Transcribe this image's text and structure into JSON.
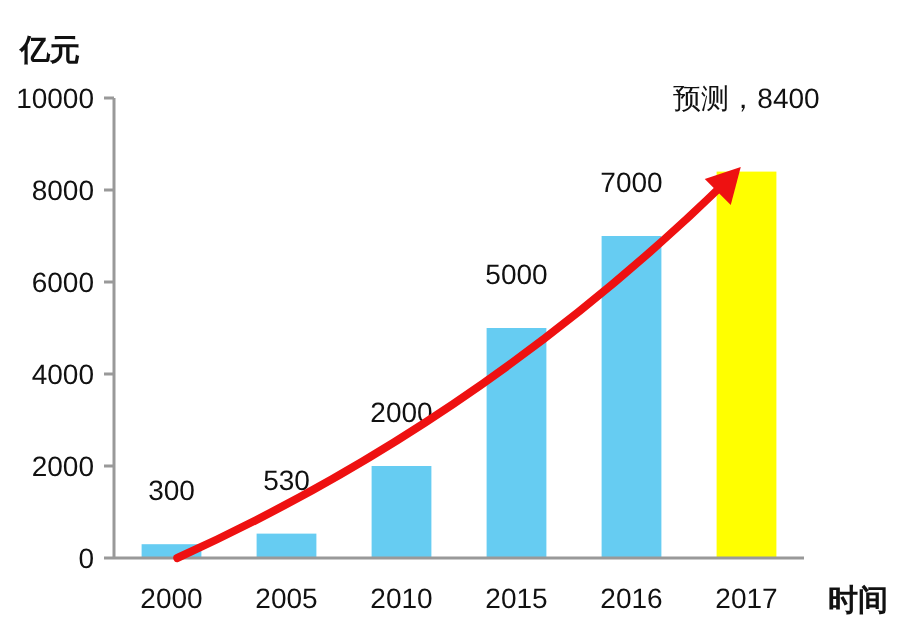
{
  "chart_data": {
    "type": "bar",
    "ylabel": "亿元",
    "xlabel": "时间",
    "categories": [
      "2000",
      "2005",
      "2010",
      "2015",
      "2016",
      "2017"
    ],
    "values": [
      300,
      530,
      2000,
      5000,
      7000,
      8400
    ],
    "colors": [
      "#66ccf2",
      "#66ccf2",
      "#66ccf2",
      "#66ccf2",
      "#66ccf2",
      "#ffff00"
    ],
    "value_labels": [
      "300",
      "530",
      "2000",
      "5000",
      "7000",
      "预测，8400"
    ],
    "ylim": [
      0,
      10000
    ],
    "yticks": [
      0,
      2000,
      4000,
      6000,
      8000,
      10000
    ]
  }
}
